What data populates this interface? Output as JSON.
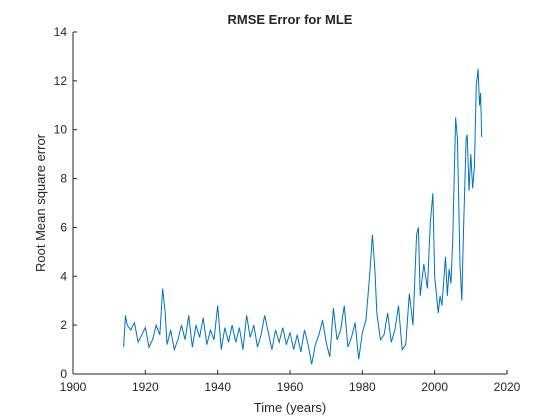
{
  "chart_data": {
    "type": "line",
    "title": "RMSE Error for MLE",
    "xlabel": "Time (years)",
    "ylabel": "Root Mean square error",
    "x": [
      1914,
      1914.5,
      1915,
      1916,
      1917,
      1918,
      1919,
      1920,
      1921,
      1922,
      1923,
      1924,
      1924.8,
      1925.5,
      1926,
      1927,
      1928,
      1929,
      1930,
      1931,
      1932,
      1933,
      1934,
      1935,
      1936,
      1937,
      1938,
      1939,
      1940,
      1941,
      1942,
      1943,
      1944,
      1945,
      1946,
      1947,
      1948,
      1949,
      1950,
      1951,
      1952,
      1953,
      1954,
      1955,
      1956,
      1957,
      1958,
      1959,
      1960,
      1961,
      1962,
      1963,
      1964,
      1965,
      1966,
      1967,
      1968,
      1969,
      1970,
      1971,
      1972,
      1973,
      1974,
      1975,
      1976,
      1977,
      1978,
      1979,
      1980,
      1981,
      1982,
      1982.8,
      1983.5,
      1984,
      1985,
      1986,
      1987,
      1988,
      1989,
      1990,
      1991,
      1992,
      1993,
      1994,
      1995,
      1995.5,
      1996,
      1997,
      1998,
      1998.8,
      1999.5,
      2000,
      2001,
      2001.5,
      2002,
      2003,
      2003.5,
      2004,
      2004.5,
      2005,
      2005.8,
      2006.3,
      2007,
      2007.5,
      2008,
      2008.7,
      2009,
      2009.5,
      2010,
      2010.5,
      2011,
      2011.5,
      2012,
      2012.4,
      2012.7,
      2013
    ],
    "series": [
      {
        "name": "RMSE",
        "color": "#0072bd",
        "values": [
          1.1,
          2.4,
          2.0,
          1.8,
          2.1,
          1.3,
          1.6,
          1.9,
          1.1,
          1.4,
          2.0,
          1.6,
          3.5,
          2.5,
          1.2,
          1.8,
          1.0,
          1.4,
          2.0,
          1.4,
          2.4,
          1.1,
          2.0,
          1.5,
          2.3,
          1.2,
          1.8,
          1.4,
          2.8,
          1.0,
          1.9,
          1.3,
          2.0,
          1.3,
          1.9,
          1.0,
          2.4,
          1.5,
          2.0,
          1.1,
          1.6,
          2.4,
          1.7,
          1.0,
          1.8,
          1.3,
          1.9,
          1.2,
          1.7,
          1.0,
          1.6,
          0.9,
          1.8,
          1.2,
          0.4,
          1.2,
          1.6,
          2.2,
          1.3,
          0.7,
          2.7,
          1.4,
          1.8,
          2.8,
          1.1,
          1.5,
          2.1,
          0.6,
          1.7,
          2.2,
          4.0,
          5.7,
          4.2,
          2.5,
          1.4,
          1.6,
          2.5,
          1.3,
          1.8,
          2.8,
          1.0,
          1.2,
          3.3,
          2.0,
          5.7,
          6.0,
          3.2,
          4.5,
          3.5,
          6.2,
          7.4,
          4.0,
          2.5,
          3.2,
          2.8,
          4.8,
          3.2,
          4.3,
          3.7,
          5.5,
          10.5,
          9.6,
          4.5,
          3.0,
          6.0,
          9.6,
          9.8,
          7.5,
          9.0,
          7.6,
          8.5,
          11.8,
          12.5,
          11.0,
          11.5,
          9.7
        ]
      }
    ],
    "xlim": [
      1900,
      2020
    ],
    "xticks": [
      1900,
      1920,
      1940,
      1960,
      1980,
      2000,
      2020
    ],
    "ylim": [
      0,
      14
    ],
    "yticks": [
      0,
      2,
      4,
      6,
      8,
      10,
      12,
      14
    ]
  }
}
